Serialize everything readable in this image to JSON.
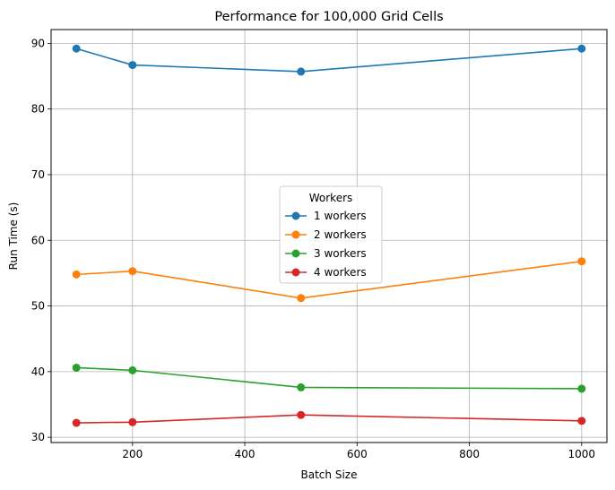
{
  "chart_data": {
    "type": "line",
    "title": "Performance for 100,000 Grid Cells",
    "xlabel": "Batch Size",
    "ylabel": "Run Time (s)",
    "x": [
      100,
      200,
      500,
      1000
    ],
    "xlim": [
      55,
      1045
    ],
    "ylim": [
      29.2,
      92.1
    ],
    "xticks": [
      200,
      400,
      600,
      800,
      1000
    ],
    "yticks": [
      30,
      40,
      50,
      60,
      70,
      80,
      90
    ],
    "grid": true,
    "legend": {
      "title": "Workers",
      "placement": "center"
    },
    "series": [
      {
        "name": "1 workers",
        "color": "#1f77b4",
        "values": [
          89.2,
          86.7,
          85.7,
          89.2
        ]
      },
      {
        "name": "2 workers",
        "color": "#ff7f0e",
        "values": [
          54.8,
          55.3,
          51.2,
          56.8
        ]
      },
      {
        "name": "3 workers",
        "color": "#2ca02c",
        "values": [
          40.6,
          40.2,
          37.6,
          37.4
        ]
      },
      {
        "name": "4 workers",
        "color": "#d62728",
        "values": [
          32.2,
          32.3,
          33.4,
          32.5
        ]
      }
    ]
  }
}
